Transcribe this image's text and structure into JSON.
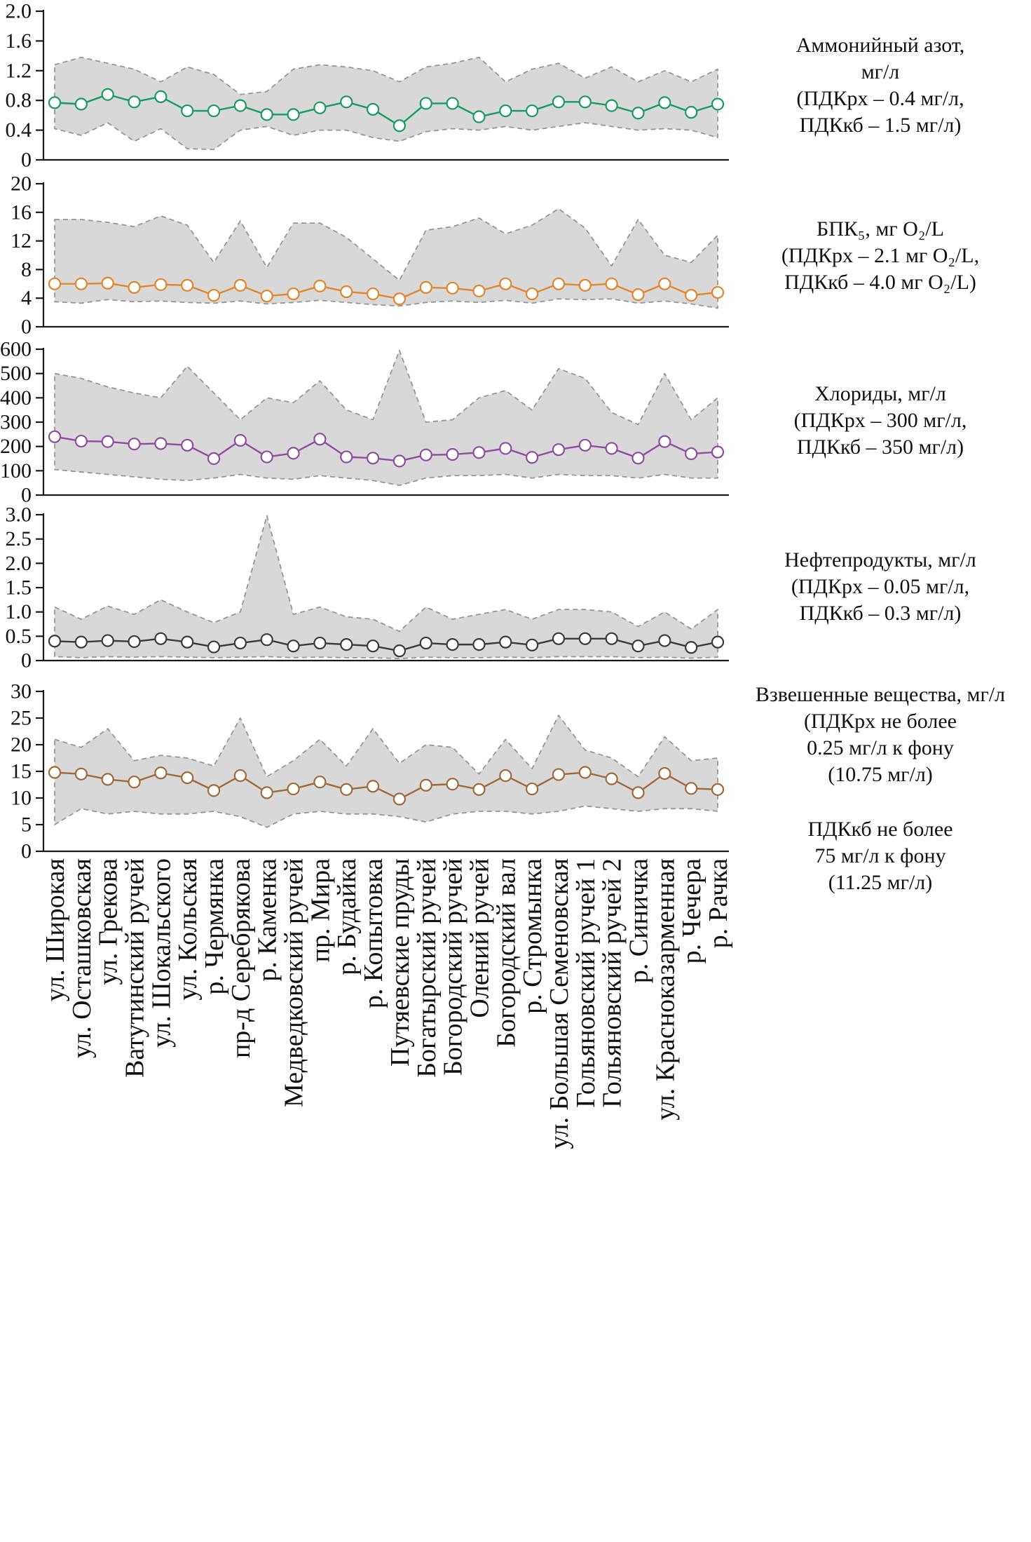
{
  "figure": {
    "title": "",
    "style": {
      "band_fill": "#d8d8d8",
      "band_edge": "#969696",
      "axis_color": "#1a1a1a",
      "text_color": "#111111"
    }
  },
  "categories": [
    "ул. Широкая",
    "ул. Осташковская",
    "ул. Грекова",
    "Ватутинский ручей",
    "ул. Шокальского",
    "ул. Кольская",
    "р. Чермянка",
    "пр-д Серебрякова",
    "р. Каменка",
    "Медведковский ручей",
    "пр. Мира",
    "р. Будайка",
    "р. Копытовка",
    "Путяевские пруды",
    "Богатырский ручей",
    "Богородский ручей",
    "Олений ручей",
    "Богородский вал",
    "р. Стромынка",
    "ул. Большая Семеновская",
    "Гольяновский ручей 1",
    "Гольяновский ручей 2",
    "р. Синичка",
    "ул. Красноказарменная",
    "р. Чечера",
    "р. Рачка"
  ],
  "chart_data": [
    {
      "type": "line",
      "name": "ammonium-nitrogen",
      "label_lines": [
        "Аммонийный азот,",
        "мг/л",
        "(ПДКрх  – 0.4 мг/л,",
        "ПДКкб  – 1.5 мг/л)"
      ],
      "color": "#189b62",
      "ylim": [
        0,
        2.0
      ],
      "yticks": [
        "0",
        "0.4",
        "0.8",
        "1.2",
        "1.6",
        "2.0"
      ],
      "grid": false,
      "values": [
        0.77,
        0.75,
        0.88,
        0.78,
        0.85,
        0.66,
        0.66,
        0.73,
        0.61,
        0.61,
        0.7,
        0.78,
        0.68,
        0.46,
        0.76,
        0.76,
        0.58,
        0.66,
        0.66,
        0.78,
        0.78,
        0.73,
        0.63,
        0.77,
        0.64,
        0.75
      ],
      "band_upper": [
        1.28,
        1.38,
        1.3,
        1.22,
        1.05,
        1.25,
        1.15,
        0.88,
        0.92,
        1.22,
        1.28,
        1.25,
        1.2,
        1.05,
        1.25,
        1.3,
        1.38,
        1.05,
        1.22,
        1.3,
        1.1,
        1.25,
        1.05,
        1.2,
        1.05,
        1.22
      ],
      "band_lower": [
        0.42,
        0.33,
        0.5,
        0.25,
        0.42,
        0.15,
        0.14,
        0.4,
        0.45,
        0.33,
        0.4,
        0.4,
        0.3,
        0.25,
        0.38,
        0.42,
        0.4,
        0.45,
        0.4,
        0.45,
        0.5,
        0.45,
        0.4,
        0.42,
        0.4,
        0.3
      ]
    },
    {
      "type": "line",
      "name": "bod5",
      "label_lines": [
        "БПК₅, мг О₂/L",
        "(ПДКрх – 2.1 мг О₂/L,",
        "ПДКкб – 4.0 мг О₂/L)"
      ],
      "color": "#e2862c",
      "ylim": [
        0,
        20
      ],
      "yticks": [
        "0",
        "4",
        "8",
        "12",
        "16",
        "20"
      ],
      "grid": false,
      "values": [
        6.0,
        6.0,
        6.1,
        5.5,
        5.9,
        5.8,
        4.4,
        5.8,
        4.3,
        4.6,
        5.7,
        4.9,
        4.6,
        3.9,
        5.5,
        5.4,
        5.0,
        6.0,
        4.6,
        6.0,
        5.8,
        6.0,
        4.5,
        6.0,
        4.4,
        4.8
      ],
      "band_upper": [
        15.0,
        15.0,
        14.6,
        14.0,
        15.5,
        14.2,
        9.0,
        14.8,
        8.3,
        14.5,
        14.5,
        12.5,
        9.5,
        6.5,
        13.5,
        14.0,
        15.2,
        13.0,
        14.2,
        16.5,
        13.8,
        8.5,
        15.0,
        10.0,
        9.0,
        12.8
      ],
      "band_lower": [
        3.5,
        3.3,
        3.8,
        3.5,
        3.6,
        3.4,
        3.3,
        3.6,
        3.2,
        3.4,
        3.7,
        3.4,
        3.1,
        2.9,
        3.4,
        3.6,
        3.4,
        3.7,
        3.3,
        3.9,
        3.8,
        3.9,
        3.3,
        3.6,
        3.2,
        2.6
      ]
    },
    {
      "type": "line",
      "name": "chlorides",
      "label_lines": [
        "Хлориды, мг/л",
        "(ПДКрх  – 300 мг/л,",
        "ПДКкб – 350 мг/л)"
      ],
      "color": "#8e4d9f",
      "ylim": [
        0,
        600
      ],
      "yticks": [
        "0",
        "100",
        "200",
        "300",
        "400",
        "500",
        "600"
      ],
      "grid": false,
      "values": [
        240,
        222,
        220,
        210,
        212,
        205,
        150,
        225,
        157,
        172,
        230,
        157,
        152,
        140,
        165,
        167,
        175,
        192,
        155,
        187,
        205,
        192,
        152,
        220,
        170,
        177
      ],
      "band_upper": [
        500,
        480,
        445,
        420,
        400,
        530,
        420,
        310,
        400,
        380,
        470,
        350,
        310,
        595,
        300,
        310,
        400,
        430,
        350,
        520,
        480,
        340,
        290,
        500,
        310,
        400
      ],
      "band_lower": [
        105,
        95,
        85,
        75,
        65,
        60,
        70,
        85,
        70,
        65,
        80,
        70,
        60,
        40,
        70,
        80,
        80,
        85,
        70,
        85,
        80,
        80,
        70,
        85,
        70,
        70
      ]
    },
    {
      "type": "line",
      "name": "oil-products",
      "label_lines": [
        "Нефтепродукты, мг/л",
        "(ПДКрх  – 0.05 мг/л,",
        "ПДКкб – 0.3 мг/л)"
      ],
      "color": "#3a3a3a",
      "ylim": [
        0,
        3.0
      ],
      "yticks": [
        "0",
        "0.5",
        "1.0",
        "1.5",
        "2.0",
        "2.5",
        "3.0"
      ],
      "grid": false,
      "values": [
        0.4,
        0.38,
        0.41,
        0.39,
        0.45,
        0.38,
        0.28,
        0.36,
        0.43,
        0.3,
        0.36,
        0.33,
        0.3,
        0.2,
        0.36,
        0.33,
        0.33,
        0.38,
        0.32,
        0.45,
        0.45,
        0.45,
        0.3,
        0.41,
        0.27,
        0.38
      ],
      "band_upper": [
        1.1,
        0.85,
        1.12,
        0.95,
        1.25,
        1.0,
        0.78,
        1.0,
        2.98,
        0.95,
        1.1,
        0.9,
        0.85,
        0.6,
        1.1,
        0.85,
        0.95,
        1.05,
        0.85,
        1.05,
        1.05,
        1.0,
        0.7,
        1.0,
        0.65,
        1.05
      ],
      "band_lower": [
        0.08,
        0.06,
        0.08,
        0.07,
        0.08,
        0.07,
        0.06,
        0.07,
        0.08,
        0.06,
        0.07,
        0.06,
        0.06,
        0.04,
        0.07,
        0.06,
        0.06,
        0.07,
        0.06,
        0.08,
        0.08,
        0.08,
        0.06,
        0.07,
        0.05,
        0.07
      ]
    },
    {
      "type": "line",
      "name": "suspended-solids",
      "label_lines": [
        "Взвешенные вещества, мг/л",
        "(ПДКрх  не более",
        "0.25 мг/л к фону",
        "(10.75 мг/л)",
        "",
        "ПДКкб не более",
        "75 мг/л к фону",
        "(11.25 мг/л)"
      ],
      "color": "#a06a38",
      "ylim": [
        0,
        30
      ],
      "yticks": [
        "0",
        "5",
        "10",
        "15",
        "20",
        "25",
        "30"
      ],
      "grid": false,
      "values": [
        14.8,
        14.5,
        13.5,
        13.0,
        14.7,
        13.8,
        11.4,
        14.2,
        11.0,
        11.7,
        13.0,
        11.6,
        12.2,
        9.8,
        12.4,
        12.6,
        11.6,
        14.2,
        11.7,
        14.4,
        14.8,
        13.6,
        11.0,
        14.6,
        11.8,
        11.6
      ],
      "band_upper": [
        21.0,
        19.5,
        23.0,
        17.0,
        18.0,
        17.5,
        16.0,
        25.0,
        14.0,
        17.0,
        21.0,
        16.0,
        23.0,
        16.5,
        20.0,
        19.5,
        14.5,
        21.0,
        15.5,
        25.5,
        19.0,
        17.5,
        14.0,
        21.5,
        17.0,
        17.5
      ],
      "band_lower": [
        5.0,
        8.0,
        7.0,
        7.5,
        7.0,
        7.0,
        7.5,
        6.5,
        4.5,
        7.0,
        7.5,
        7.0,
        7.0,
        6.5,
        5.5,
        7.0,
        7.5,
        7.5,
        7.0,
        7.5,
        8.5,
        8.0,
        7.5,
        8.0,
        8.0,
        7.5
      ]
    }
  ]
}
